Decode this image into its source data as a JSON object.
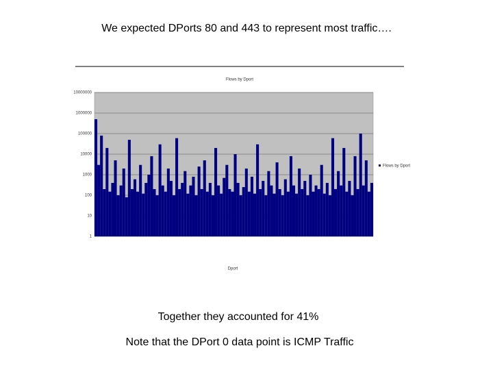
{
  "slide_title": "We expected DPorts 80 and 443 to represent most traffic….",
  "notes": [
    "Together they accounted for 41%",
    "Note that the DPort 0 data point is ICMP Traffic"
  ],
  "chart_data": {
    "type": "bar",
    "title": "Flows by Dport",
    "x_label": "Dport",
    "log_scale": true,
    "legend": "right",
    "plot_background": "#c0c0c0",
    "categories": [
      null,
      null,
      null,
      null,
      null,
      null,
      null,
      null,
      null,
      null,
      null,
      null,
      null,
      null,
      null,
      null,
      null,
      null,
      null,
      null,
      null,
      null,
      null,
      null,
      null,
      null,
      null,
      null,
      null,
      null,
      null,
      null,
      null,
      null,
      null,
      null,
      null,
      null,
      null,
      null,
      null,
      null,
      null,
      null,
      null,
      null,
      null,
      null,
      null,
      null,
      null,
      null,
      null,
      null,
      null,
      null,
      null,
      null,
      null,
      null,
      null,
      null,
      null,
      null,
      null,
      null,
      null,
      null,
      null,
      null,
      null,
      null,
      null,
      null,
      null,
      null,
      null,
      null,
      null,
      null,
      null,
      null,
      null,
      null,
      null,
      null,
      null,
      null,
      null,
      null,
      null,
      null,
      null,
      null,
      null,
      null,
      null,
      null,
      null,
      null
    ],
    "series": [
      {
        "name": "Flows by Dport",
        "color": "#000080",
        "values": [
          500000,
          3000,
          80000,
          200,
          20000,
          150,
          400,
          5000,
          100,
          300,
          2000,
          80,
          50000,
          200,
          600,
          150,
          3000,
          120,
          400,
          1000,
          8000,
          200,
          100,
          30000,
          300,
          150,
          2000,
          500,
          100,
          60000,
          200,
          400,
          1500,
          120,
          300,
          800,
          100,
          2500,
          200,
          5000,
          150,
          400,
          100,
          20000,
          300,
          120,
          700,
          3000,
          200,
          150,
          10000,
          400,
          100,
          250,
          2000,
          150,
          800,
          120,
          30000,
          200,
          500,
          100,
          1500,
          300,
          120,
          4000,
          200,
          100,
          600,
          150,
          8000,
          300,
          120,
          2000,
          200,
          500,
          100,
          1000,
          150,
          300,
          200,
          3000,
          120,
          400,
          100,
          60000,
          200,
          1500,
          300,
          20000,
          150,
          500,
          100,
          8000,
          200,
          100000,
          300,
          5000,
          150,
          400
        ]
      }
    ],
    "ylim": [
      1,
      10000000
    ],
    "yticks": [
      1,
      10,
      100,
      1000,
      10000,
      100000,
      1000000,
      10000000
    ]
  }
}
